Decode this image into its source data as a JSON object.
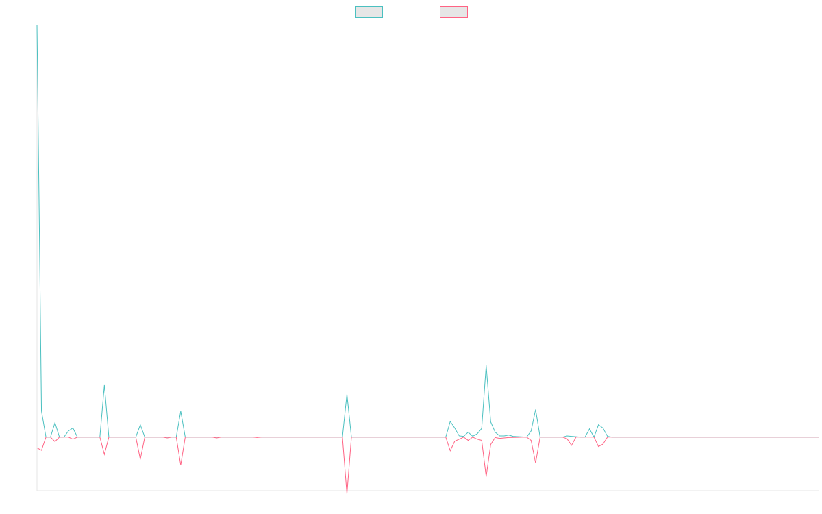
{
  "chart_data": {
    "type": "line",
    "title": "",
    "xlabel": "",
    "ylabel": "",
    "grid": false,
    "legend_position": "top",
    "x_count": 175,
    "ylim": [
      -0.13,
      1.0
    ],
    "series": [
      {
        "color": "#4bc0c0",
        "fill": "#e6e6e6",
        "points": [
          [
            0,
            1.0
          ],
          [
            1,
            0.063
          ],
          [
            2,
            0.0
          ],
          [
            3,
            0.0
          ],
          [
            4,
            0.035
          ],
          [
            5,
            0.0
          ],
          [
            6,
            0.0
          ],
          [
            7,
            0.015
          ],
          [
            8,
            0.022
          ],
          [
            9,
            0.0
          ],
          [
            14,
            0.0
          ],
          [
            15,
            0.126
          ],
          [
            16,
            0.0
          ],
          [
            22,
            0.0
          ],
          [
            23,
            0.03
          ],
          [
            24,
            0.0
          ],
          [
            31,
            0.0
          ],
          [
            32,
            0.063
          ],
          [
            33,
            0.0
          ],
          [
            68,
            0.0
          ],
          [
            69,
            0.104
          ],
          [
            70,
            0.0
          ],
          [
            91,
            0.0
          ],
          [
            92,
            0.038
          ],
          [
            93,
            0.022
          ],
          [
            94,
            0.003
          ],
          [
            95,
            0.002
          ],
          [
            96,
            0.012
          ],
          [
            97,
            0.002
          ],
          [
            98,
            0.008
          ],
          [
            99,
            0.021
          ],
          [
            100,
            0.174
          ],
          [
            101,
            0.037
          ],
          [
            102,
            0.012
          ],
          [
            103,
            0.003
          ],
          [
            104,
            0.003
          ],
          [
            105,
            0.005
          ],
          [
            106,
            0.002
          ],
          [
            109,
            0.0
          ],
          [
            110,
            0.015
          ],
          [
            111,
            0.067
          ],
          [
            112,
            0.0
          ],
          [
            117,
            0.0
          ],
          [
            118,
            0.003
          ],
          [
            119,
            0.002
          ],
          [
            120,
            0.001
          ],
          [
            121,
            0.0
          ],
          [
            122,
            0.0
          ],
          [
            123,
            0.02
          ],
          [
            124,
            0.0
          ],
          [
            125,
            0.03
          ],
          [
            126,
            0.022
          ],
          [
            127,
            0.002
          ],
          [
            128,
            0.0
          ],
          [
            174,
            0.0
          ]
        ]
      },
      {
        "color": "#ff6384",
        "fill": "#e6e6e6",
        "points": [
          [
            0,
            -0.026
          ],
          [
            1,
            -0.032
          ],
          [
            2,
            0.0
          ],
          [
            3,
            0.0
          ],
          [
            4,
            -0.011
          ],
          [
            5,
            0.0
          ],
          [
            6,
            0.0
          ],
          [
            7,
            0.0
          ],
          [
            8,
            -0.005
          ],
          [
            9,
            0.0
          ],
          [
            14,
            0.0
          ],
          [
            15,
            -0.042
          ],
          [
            16,
            0.0
          ],
          [
            22,
            0.0
          ],
          [
            23,
            -0.054
          ],
          [
            24,
            0.0
          ],
          [
            28,
            0.0
          ],
          [
            29,
            -0.002
          ],
          [
            30,
            0.0
          ],
          [
            31,
            0.0
          ],
          [
            32,
            -0.068
          ],
          [
            33,
            0.0
          ],
          [
            39,
            0.0
          ],
          [
            40,
            -0.002
          ],
          [
            41,
            0.0
          ],
          [
            48,
            0.0
          ],
          [
            49,
            -0.001
          ],
          [
            50,
            0.0
          ],
          [
            68,
            0.0
          ],
          [
            69,
            -0.138
          ],
          [
            70,
            0.0
          ],
          [
            91,
            0.0
          ],
          [
            92,
            -0.033
          ],
          [
            93,
            -0.01
          ],
          [
            94,
            -0.005
          ],
          [
            95,
            0.0
          ],
          [
            96,
            -0.008
          ],
          [
            97,
            0.0
          ],
          [
            98,
            -0.005
          ],
          [
            99,
            -0.008
          ],
          [
            100,
            -0.096
          ],
          [
            101,
            -0.018
          ],
          [
            102,
            -0.001
          ],
          [
            103,
            -0.003
          ],
          [
            104,
            -0.002
          ],
          [
            105,
            -0.001
          ],
          [
            109,
            0.0
          ],
          [
            110,
            -0.008
          ],
          [
            111,
            -0.063
          ],
          [
            112,
            0.0
          ],
          [
            117,
            0.0
          ],
          [
            118,
            -0.004
          ],
          [
            119,
            -0.02
          ],
          [
            120,
            0.0
          ],
          [
            124,
            0.0
          ],
          [
            125,
            -0.023
          ],
          [
            126,
            -0.017
          ],
          [
            127,
            0.0
          ],
          [
            174,
            0.0
          ]
        ]
      }
    ]
  }
}
